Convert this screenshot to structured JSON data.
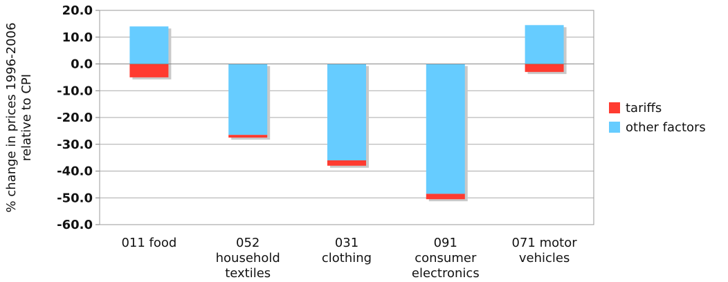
{
  "chart_data": {
    "type": "bar",
    "stacked": true,
    "title": "",
    "ylabel": "% change in prices 1996-2006 relative to CPI",
    "xlabel": "",
    "ylim": [
      -60,
      20
    ],
    "ytick_step": 10,
    "ytick_labels": [
      "20.0",
      "10.0",
      "0.0",
      "-10.0",
      "-20.0",
      "-30.0",
      "-40.0",
      "-50.0",
      "-60.0"
    ],
    "grid": true,
    "legend_position": "right",
    "categories": [
      [
        "011 food"
      ],
      [
        "052",
        "household",
        "textiles"
      ],
      [
        "031",
        "clothing"
      ],
      [
        "091",
        "consumer",
        "electronics"
      ],
      [
        "071 motor",
        "vehicles"
      ]
    ],
    "series": [
      {
        "name": "tariffs",
        "color": "#ff3b30",
        "values": [
          -5.0,
          -1.0,
          -2.0,
          -2.0,
          -3.0
        ]
      },
      {
        "name": "other factors",
        "color": "#66ccff",
        "values": [
          14.0,
          -26.5,
          -36.0,
          -48.5,
          14.5
        ]
      }
    ]
  }
}
